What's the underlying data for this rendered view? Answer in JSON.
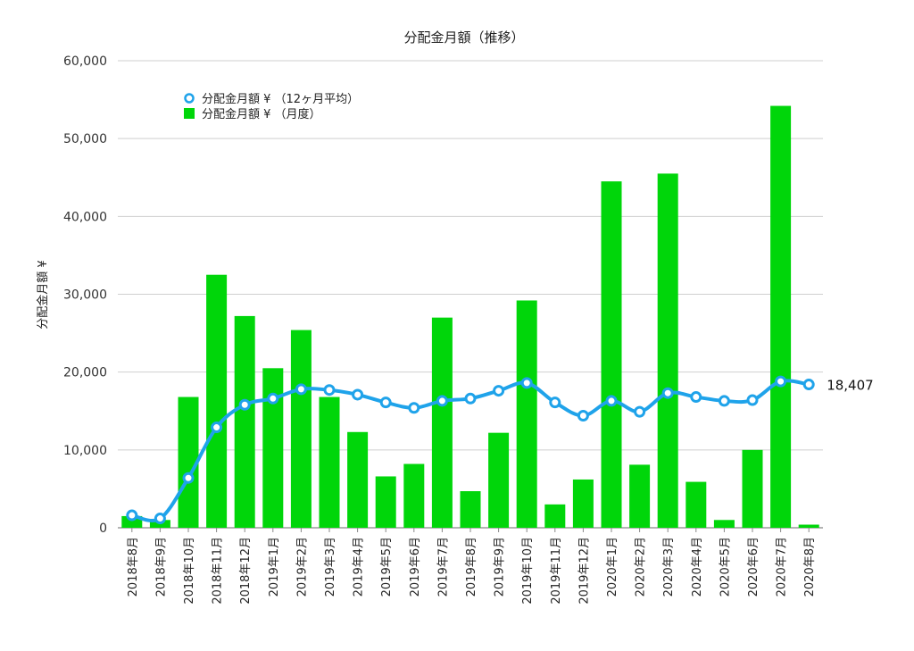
{
  "chart_data": {
    "type": "bar",
    "title": "分配金月額（推移）",
    "ylabel": "分配金月額 ¥",
    "xlabel": "",
    "ylim": [
      0,
      60000
    ],
    "yticks": [
      0,
      10000,
      20000,
      30000,
      40000,
      50000,
      60000
    ],
    "ytick_labels": [
      "0",
      "10,000",
      "20,000",
      "30,000",
      "40,000",
      "50,000",
      "60,000"
    ],
    "grid": true,
    "legend_position": "top-left",
    "categories": [
      "2018年8月",
      "2018年9月",
      "2018年10月",
      "2018年11月",
      "2018年12月",
      "2019年1月",
      "2019年2月",
      "2019年3月",
      "2019年4月",
      "2019年5月",
      "2019年6月",
      "2019年7月",
      "2019年8月",
      "2019年9月",
      "2019年10月",
      "2019年11月",
      "2019年12月",
      "2020年1月",
      "2020年2月",
      "2020年3月",
      "2020年4月",
      "2020年5月",
      "2020年6月",
      "2020年7月",
      "2020年8月"
    ],
    "series": [
      {
        "name": "分配金月額 ¥ （12ヶ月平均）",
        "kind": "line",
        "color": "#1fa3ea",
        "values": [
          1600,
          1200,
          6400,
          12900,
          15800,
          16600,
          17800,
          17700,
          17100,
          16100,
          15400,
          16300,
          16600,
          17600,
          18600,
          16100,
          14400,
          16300,
          14900,
          17300,
          16800,
          16300,
          16400,
          18800,
          18407
        ]
      },
      {
        "name": "分配金月額 ¥ （月度）",
        "kind": "bar",
        "color": "#00d60a",
        "values": [
          1500,
          1000,
          16800,
          32500,
          27200,
          20500,
          25400,
          16800,
          12300,
          6600,
          8200,
          27000,
          4700,
          12200,
          29200,
          3000,
          6200,
          44500,
          8100,
          45500,
          5900,
          1000,
          10000,
          54200,
          400
        ]
      }
    ],
    "annotations": [
      {
        "series": 0,
        "index": 24,
        "text": "18,407"
      }
    ]
  }
}
